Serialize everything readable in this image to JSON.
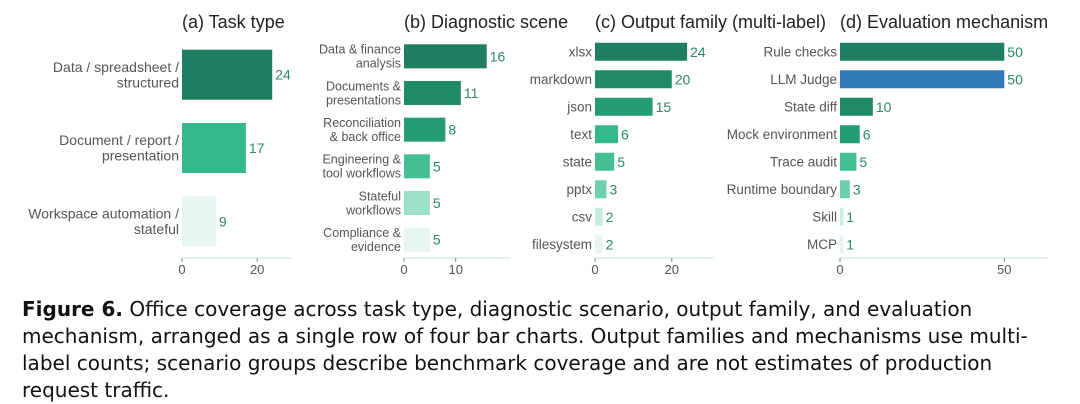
{
  "chart_data": [
    {
      "type": "bar",
      "orientation": "horizontal",
      "title": "(a)  Task type",
      "categories": [
        "Data / spreadsheet / structured",
        "Document / report / presentation",
        "Workspace automation / stateful"
      ],
      "values": [
        24,
        17,
        9
      ],
      "value_labels": [
        "24",
        "17",
        "9"
      ],
      "xticks": [
        "0",
        "20"
      ],
      "xlim": [
        0,
        29
      ],
      "colors": [
        "#1f7d61",
        "#35b98c",
        "#e6f5ee"
      ],
      "grid": false
    },
    {
      "type": "bar",
      "orientation": "horizontal",
      "title": "(b)  Diagnostic scene",
      "categories": [
        "Data & finance analysis",
        "Documents & presentations",
        "Reconciliation & back office",
        "Engineering & tool workflows",
        "Stateful workflows",
        "Compliance & evidence"
      ],
      "values": [
        16,
        11,
        8,
        5,
        5,
        5
      ],
      "value_labels": [
        "16",
        "11",
        "8",
        "5",
        "5",
        "5"
      ],
      "xticks": [
        "0",
        "10"
      ],
      "xlim": [
        0,
        20.5
      ],
      "colors": [
        "#1f7d61",
        "#1f8c67",
        "#259d73",
        "#45be91",
        "#9ce0c6",
        "#e6f5ee"
      ],
      "grid": false
    },
    {
      "type": "bar",
      "orientation": "horizontal",
      "title": "(c)  Output family (multi-label)",
      "categories": [
        "xlsx",
        "markdown",
        "json",
        "text",
        "state",
        "pptx",
        "csv",
        "filesystem"
      ],
      "values": [
        24,
        20,
        15,
        6,
        5,
        3,
        2,
        2
      ],
      "value_labels": [
        "24",
        "20",
        "15",
        "6",
        "5",
        "3",
        "2",
        "2"
      ],
      "xticks": [
        "0",
        "20"
      ],
      "xlim": [
        0,
        31
      ],
      "colors": [
        "#1f7d61",
        "#1f8c67",
        "#259d73",
        "#35b98c",
        "#45be91",
        "#6fcfad",
        "#c8ecdd",
        "#e6f5ee"
      ],
      "grid": false
    },
    {
      "type": "bar",
      "orientation": "horizontal",
      "title": "(d)  Evaluation mechanism",
      "categories": [
        "Rule checks",
        "LLM Judge",
        "State diff",
        "Mock environment",
        "Trace audit",
        "Runtime boundary",
        "Skill",
        "MCP"
      ],
      "values": [
        50,
        50,
        10,
        6,
        5,
        3,
        1,
        1
      ],
      "value_labels": [
        "50",
        "50",
        "10",
        "6",
        "5",
        "3",
        "1",
        "1"
      ],
      "xticks": [
        "0",
        "50"
      ],
      "xlim": [
        0,
        63
      ],
      "colors": [
        "#1f7d61",
        "#2f7bb6",
        "#1f8c67",
        "#259d73",
        "#45be91",
        "#6fcfad",
        "#c8ecdd",
        "#e6f5ee"
      ],
      "grid": false
    }
  ],
  "caption": {
    "label": "Figure 6.",
    "text": "Office coverage across task type, diagnostic scenario, output family, and evaluation mechanism, arranged as a single row of four bar charts.  Output families and mechanisms use multi-label counts; scenario groups describe benchmark coverage and are not estimates of production request traffic."
  }
}
